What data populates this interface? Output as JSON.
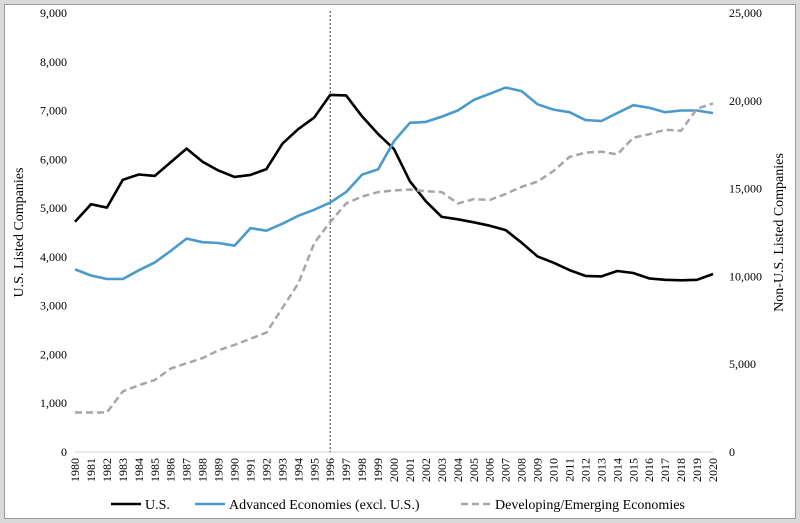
{
  "chart_data": {
    "type": "line",
    "title": "",
    "xlabel": "",
    "ylabel_left": "U.S. Listed Companies",
    "ylabel_right": "Non-U.S. Listed Companies",
    "ylim_left": [
      0,
      9000
    ],
    "ylim_right": [
      0,
      25000
    ],
    "yticks_left": [
      "0",
      "1,000",
      "2,000",
      "3,000",
      "4,000",
      "5,000",
      "6,000",
      "7,000",
      "8,000",
      "9,000"
    ],
    "yticks_right": [
      "0",
      "5,000",
      "10,000",
      "15,000",
      "20,000",
      "25,000"
    ],
    "reference_line_x": 1996,
    "grid": false,
    "legend_position": "bottom",
    "x": [
      1980,
      1981,
      1982,
      1983,
      1984,
      1985,
      1986,
      1987,
      1988,
      1989,
      1990,
      1991,
      1992,
      1993,
      1994,
      1995,
      1996,
      1997,
      1998,
      1999,
      2000,
      2001,
      2002,
      2003,
      2004,
      2005,
      2006,
      2007,
      2008,
      2009,
      2010,
      2011,
      2012,
      2013,
      2014,
      2015,
      2016,
      2017,
      2018,
      2019,
      2020
    ],
    "series": [
      {
        "name": "U.S.",
        "axis": "left",
        "color": "#000000",
        "style": "solid",
        "values": [
          4720,
          5080,
          5010,
          5580,
          5690,
          5660,
          5940,
          6220,
          5950,
          5770,
          5640,
          5680,
          5800,
          6320,
          6620,
          6860,
          7320,
          7310,
          6880,
          6520,
          6210,
          5550,
          5140,
          4820,
          4770,
          4710,
          4640,
          4550,
          4290,
          4010,
          3880,
          3730,
          3610,
          3600,
          3710,
          3670,
          3560,
          3530,
          3520,
          3530,
          3650
        ]
      },
      {
        "name": "Advanced Economies (excl. U.S.)",
        "axis": "right",
        "color": "#4a9bcb",
        "style": "solid",
        "values": [
          10400,
          10050,
          9850,
          9850,
          10350,
          10800,
          11450,
          12150,
          11950,
          11900,
          11750,
          12750,
          12600,
          13000,
          13450,
          13800,
          14200,
          14800,
          15800,
          16100,
          17700,
          18750,
          18800,
          19100,
          19450,
          20050,
          20400,
          20750,
          20550,
          19800,
          19500,
          19350,
          18900,
          18850,
          19300,
          19750,
          19600,
          19350,
          19450,
          19450,
          19300
        ]
      },
      {
        "name": "Developing/Emerging Economies",
        "axis": "right",
        "color": "#a6a6a6",
        "style": "dashed",
        "values": [
          2250,
          2250,
          2250,
          3450,
          3800,
          4100,
          4750,
          5050,
          5350,
          5800,
          6100,
          6450,
          6800,
          8200,
          9600,
          11900,
          13100,
          14150,
          14550,
          14800,
          14900,
          14950,
          14850,
          14800,
          14150,
          14400,
          14350,
          14700,
          15100,
          15400,
          16000,
          16800,
          17050,
          17100,
          16950,
          17900,
          18100,
          18350,
          18300,
          19550,
          19850
        ]
      }
    ]
  }
}
